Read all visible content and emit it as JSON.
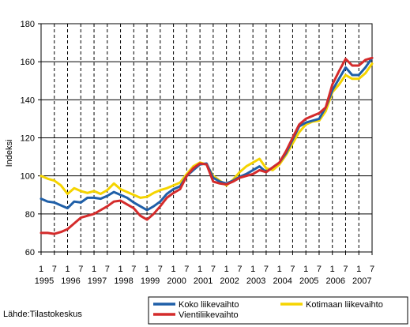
{
  "chart_data": {
    "type": "line",
    "ylabel": "Indeksi",
    "ylim": [
      60,
      180
    ],
    "yticks": [
      60,
      80,
      100,
      120,
      140,
      160,
      180
    ],
    "x_tick_months": [
      "1",
      "7",
      "1",
      "7",
      "1",
      "7",
      "1",
      "7",
      "1",
      "7",
      "1",
      "7",
      "1",
      "7",
      "1",
      "7",
      "1",
      "7",
      "1",
      "7",
      "1",
      "7",
      "1",
      "7",
      "1",
      "7"
    ],
    "x_year_labels": [
      "1995",
      "1996",
      "1997",
      "1998",
      "1999",
      "2000",
      "2001",
      "2002",
      "2003",
      "2004",
      "2005",
      "2006",
      "2007"
    ],
    "x_range": [
      1995.0,
      2007.5
    ],
    "grid": true,
    "legend_position": "bottom-right",
    "source": "Lähde:Tilastokeskus",
    "series": [
      {
        "name": "Koko liikevaihto",
        "color": "#1f5fa8",
        "x": [
          1995.0,
          1995.25,
          1995.5,
          1995.75,
          1996.0,
          1996.25,
          1996.5,
          1996.75,
          1997.0,
          1997.25,
          1997.5,
          1997.75,
          1998.0,
          1998.25,
          1998.5,
          1998.75,
          1999.0,
          1999.25,
          1999.5,
          1999.75,
          2000.0,
          2000.25,
          2000.5,
          2000.75,
          2001.0,
          2001.25,
          2001.5,
          2001.75,
          2002.0,
          2002.25,
          2002.5,
          2002.75,
          2003.0,
          2003.25,
          2003.5,
          2003.75,
          2004.0,
          2004.25,
          2004.5,
          2004.75,
          2005.0,
          2005.25,
          2005.5,
          2005.75,
          2006.0,
          2006.25,
          2006.5,
          2006.75,
          2007.0,
          2007.25,
          2007.5
        ],
        "values": [
          88,
          86.5,
          86,
          84.5,
          83,
          86.5,
          86,
          88.5,
          88.5,
          88,
          89.5,
          91.5,
          90,
          88.5,
          86,
          84,
          82,
          84,
          86.5,
          90.5,
          93,
          94.5,
          100,
          103,
          106,
          106.5,
          99,
          97,
          96,
          97.5,
          99.5,
          101,
          103,
          105,
          102,
          104.5,
          107,
          112,
          119,
          126,
          128,
          129,
          130,
          136,
          145,
          151,
          157,
          153,
          153,
          157,
          162
        ]
      },
      {
        "name": "Kotimaan liikevaihto",
        "color": "#f5d400",
        "x": [
          1995.0,
          1995.25,
          1995.5,
          1995.75,
          1996.0,
          1996.25,
          1996.5,
          1996.75,
          1997.0,
          1997.25,
          1997.5,
          1997.75,
          1998.0,
          1998.25,
          1998.5,
          1998.75,
          1999.0,
          1999.25,
          1999.5,
          1999.75,
          2000.0,
          2000.25,
          2000.5,
          2000.75,
          2001.0,
          2001.25,
          2001.5,
          2001.75,
          2002.0,
          2002.25,
          2002.5,
          2002.75,
          2003.0,
          2003.25,
          2003.5,
          2003.75,
          2004.0,
          2004.25,
          2004.5,
          2004.75,
          2005.0,
          2005.25,
          2005.5,
          2005.75,
          2006.0,
          2006.25,
          2006.5,
          2006.75,
          2007.0,
          2007.25,
          2007.5
        ],
        "values": [
          100,
          98.5,
          97.5,
          95,
          90.5,
          93.5,
          92,
          91,
          92,
          90.5,
          92.5,
          96,
          93,
          91.5,
          90,
          88.5,
          89,
          91,
          92.5,
          93.5,
          95,
          96.5,
          101,
          105,
          107,
          106,
          100,
          97.5,
          95,
          98,
          102,
          105,
          107,
          109,
          104,
          103,
          106,
          111,
          117,
          123,
          127,
          128.5,
          129,
          134,
          144,
          148,
          153,
          151,
          151,
          154,
          159
        ]
      },
      {
        "name": "Vientiliikevaihto",
        "color": "#d42b2b",
        "x": [
          1995.0,
          1995.25,
          1995.5,
          1995.75,
          1996.0,
          1996.25,
          1996.5,
          1996.75,
          1997.0,
          1997.25,
          1997.5,
          1997.75,
          1998.0,
          1998.25,
          1998.5,
          1998.75,
          1999.0,
          1999.25,
          1999.5,
          1999.75,
          2000.0,
          2000.25,
          2000.5,
          2000.75,
          2001.0,
          2001.25,
          2001.5,
          2001.75,
          2002.0,
          2002.25,
          2002.5,
          2002.75,
          2003.0,
          2003.25,
          2003.5,
          2003.75,
          2004.0,
          2004.25,
          2004.5,
          2004.75,
          2005.0,
          2005.25,
          2005.5,
          2005.75,
          2006.0,
          2006.25,
          2006.5,
          2006.75,
          2007.0,
          2007.25,
          2007.5
        ],
        "values": [
          70,
          70,
          69.5,
          70.5,
          72,
          75,
          78,
          79,
          80,
          82,
          84,
          86.5,
          87,
          85,
          83,
          79,
          77,
          80,
          84,
          88.5,
          91,
          93,
          100,
          104,
          106.5,
          106,
          97,
          96,
          95.5,
          97,
          99,
          100,
          101,
          103,
          102,
          104.5,
          107,
          113,
          120,
          127,
          130,
          131.5,
          133,
          136,
          148,
          155,
          161.5,
          158,
          158,
          161,
          162
        ]
      }
    ]
  }
}
